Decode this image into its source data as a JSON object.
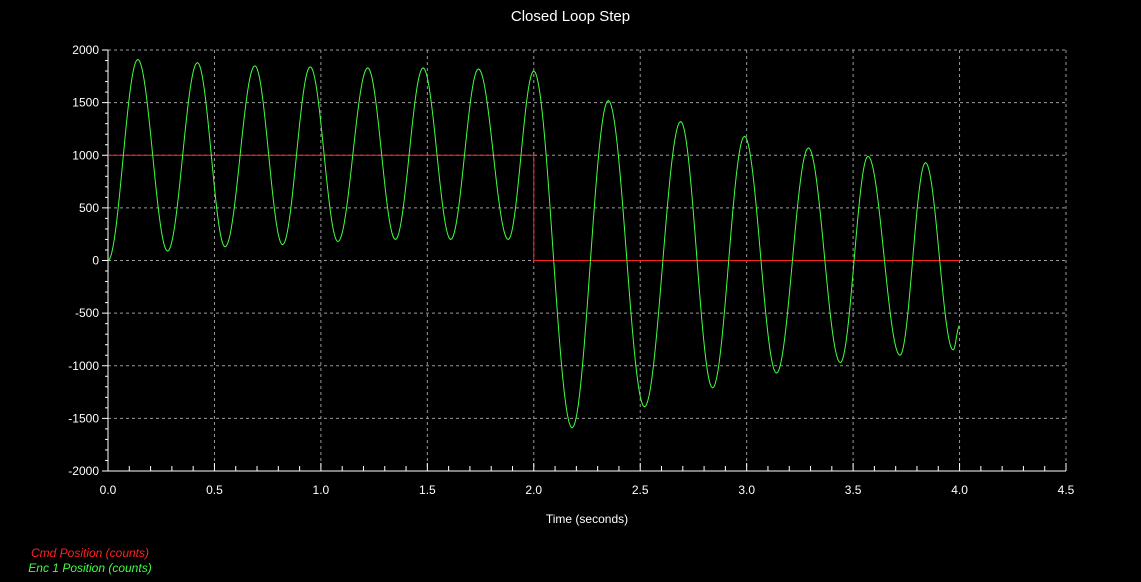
{
  "chart_data": {
    "type": "line",
    "title": "Closed Loop Step",
    "xlabel": "Time (seconds)",
    "ylabel": "",
    "xlim": [
      0.0,
      4.5
    ],
    "ylim": [
      -2000,
      2000
    ],
    "xticks": [
      "0.0",
      "0.5",
      "1.0",
      "1.5",
      "2.0",
      "2.5",
      "3.0",
      "3.5",
      "4.0",
      "4.5"
    ],
    "yticks": [
      "2000",
      "1500",
      "1000",
      "500",
      "0",
      "-500",
      "-1000",
      "-1500",
      "-2000"
    ],
    "grid": true,
    "legend_position": "bottom-left",
    "series": [
      {
        "name": "Cmd Position (counts)",
        "color": "#ff2020",
        "x": [
          0.0,
          2.0,
          2.0,
          4.0
        ],
        "y": [
          1000,
          1000,
          0,
          0
        ]
      },
      {
        "name": "Enc 1 Position (counts)",
        "color": "#40ff40",
        "x": [
          0.0,
          0.14,
          0.28,
          0.42,
          0.55,
          0.69,
          0.82,
          0.95,
          1.08,
          1.22,
          1.35,
          1.48,
          1.61,
          1.74,
          1.88,
          2.0,
          2.18,
          2.35,
          2.52,
          2.69,
          2.84,
          2.99,
          3.14,
          3.29,
          3.44,
          3.57,
          3.72,
          3.84,
          3.97,
          4.0
        ],
        "y": [
          0,
          1910,
          90,
          1880,
          130,
          1850,
          150,
          1840,
          180,
          1830,
          200,
          1830,
          200,
          1820,
          200,
          1800,
          -1590,
          1520,
          -1390,
          1320,
          -1210,
          1180,
          -1070,
          1070,
          -970,
          990,
          -900,
          930,
          -850,
          -620
        ]
      }
    ]
  }
}
